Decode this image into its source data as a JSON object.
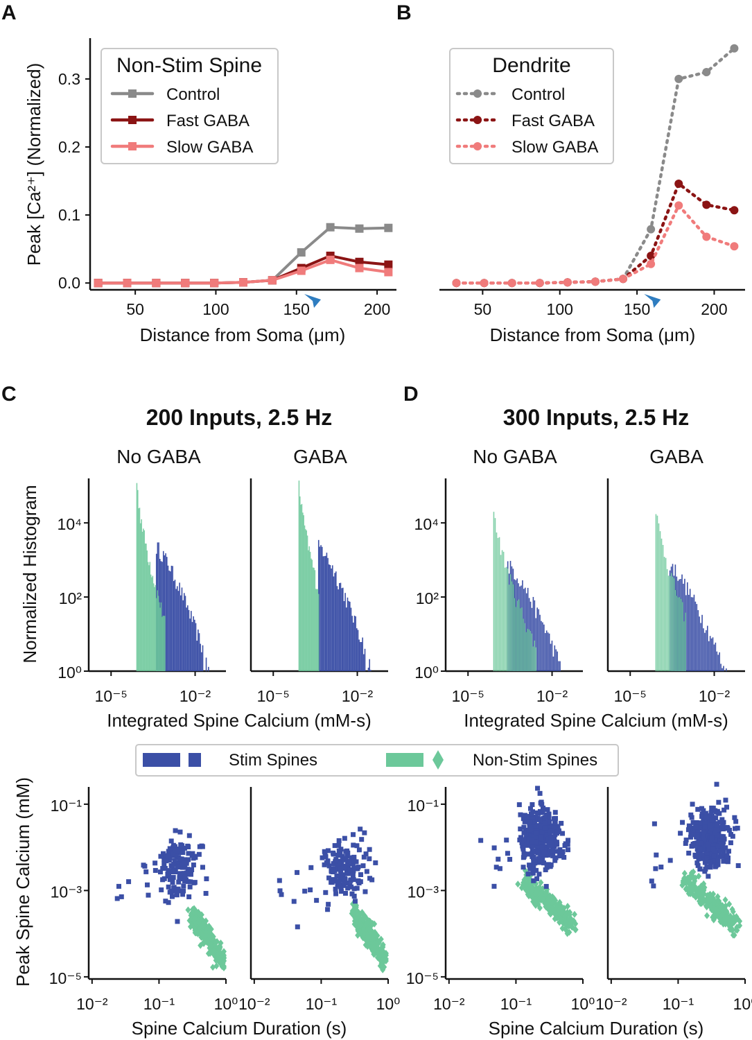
{
  "panels": {
    "A": "A",
    "B": "B",
    "C": "C",
    "D": "D"
  },
  "colors": {
    "control": "#8a8a8a",
    "fast_gaba": "#8b1414",
    "slow_gaba": "#f07b7b",
    "stim": "#3b4fa6",
    "nonstim": "#6cc89a",
    "arrow": "#2f7dc0"
  },
  "chart_data": [
    {
      "id": "A",
      "type": "line",
      "legend_title": "Non-Stim Spine",
      "xlabel": "Distance from Soma (μm)",
      "ylabel": "Peak [Ca²⁺] (Normalized)",
      "xlim": [
        22,
        212
      ],
      "ylim": [
        -0.01,
        0.36
      ],
      "xticks": [
        50,
        100,
        150,
        200
      ],
      "yticks": [
        0.0,
        0.1,
        0.2,
        0.3
      ],
      "xtick_labels": [
        "50",
        "100",
        "150",
        "200"
      ],
      "ytick_labels": [
        "0.0",
        "0.1",
        "0.2",
        "0.3"
      ],
      "arrow_x": 160,
      "x": [
        27,
        45,
        63,
        81,
        99,
        117,
        135,
        153,
        171,
        189,
        207
      ],
      "series": [
        {
          "name": "Control",
          "color_key": "control",
          "values": [
            0,
            0,
            0,
            0,
            0,
            0.001,
            0.004,
            0.045,
            0.082,
            0.08,
            0.081
          ]
        },
        {
          "name": "Fast GABA",
          "color_key": "fast_gaba",
          "values": [
            0,
            0,
            0,
            0,
            0,
            0.001,
            0.004,
            0.022,
            0.04,
            0.031,
            0.027
          ]
        },
        {
          "name": "Slow GABA",
          "color_key": "slow_gaba",
          "values": [
            0,
            0,
            0,
            0,
            0,
            0.001,
            0.004,
            0.018,
            0.034,
            0.022,
            0.016
          ]
        }
      ]
    },
    {
      "id": "B",
      "type": "line",
      "legend_title": "Dendrite",
      "xlabel": "Distance from Soma (μm)",
      "xlim": [
        22,
        220
      ],
      "ylim": [
        -0.01,
        0.36
      ],
      "xticks": [
        50,
        100,
        150,
        200
      ],
      "xtick_labels": [
        "50",
        "100",
        "150",
        "200"
      ],
      "arrow_x": 160,
      "x": [
        33,
        51,
        69,
        87,
        105,
        123,
        141,
        159,
        177,
        195,
        213
      ],
      "series": [
        {
          "name": "Control",
          "color_key": "control",
          "values": [
            0,
            0,
            0,
            0,
            0.001,
            0.002,
            0.006,
            0.079,
            0.3,
            0.31,
            0.345
          ]
        },
        {
          "name": "Fast GABA",
          "color_key": "fast_gaba",
          "values": [
            0,
            0,
            0,
            0,
            0.001,
            0.002,
            0.006,
            0.04,
            0.146,
            0.115,
            0.107
          ]
        },
        {
          "name": "Slow GABA",
          "color_key": "slow_gaba",
          "values": [
            0,
            0,
            0,
            0,
            0.001,
            0.002,
            0.006,
            0.028,
            0.114,
            0.068,
            0.054
          ]
        }
      ]
    },
    {
      "id": "C",
      "type": "histogram",
      "group_title": "200 Inputs, 2.5 Hz",
      "subplots": [
        "No GABA",
        "GABA"
      ],
      "xlabel": "Integrated Spine Calcium (mM-s)",
      "ylabel": "Normalized Histogram",
      "xscale": "log",
      "yscale": "log",
      "xticks": [
        "10⁻⁵",
        "10⁻²"
      ],
      "yticks": [
        "10⁰",
        "10²",
        "10⁴"
      ],
      "nonstim_range_log10": [
        -4.1,
        -3.1
      ],
      "stim_range_log10": [
        -3.4,
        -1.5
      ],
      "nonstim_peak": 150000,
      "stim_peak": 2500
    },
    {
      "id": "D",
      "type": "histogram",
      "group_title": "300 Inputs, 2.5 Hz",
      "subplots": [
        "No GABA",
        "GABA"
      ],
      "xlabel": "Integrated Spine Calcium (mM-s)",
      "xscale": "log",
      "yscale": "log",
      "xticks": [
        "10⁻⁵",
        "10⁻²"
      ],
      "yticks": [
        "10⁰",
        "10²",
        "10⁴"
      ],
      "nonstim_range_log10": [
        -4.1,
        -2.6
      ],
      "stim_range_log10": [
        -3.6,
        -1.4
      ],
      "nonstim_peak": 30000,
      "stim_peak": 800
    },
    {
      "id": "C_scatter",
      "type": "scatter",
      "xlabel": "Spine Calcium Duration (s)",
      "ylabel": "Peak Spine Calcium (mM)",
      "xscale": "log",
      "yscale": "log",
      "xticks": [
        "10⁻²",
        "10⁻¹",
        "10⁰"
      ],
      "yticks": [
        "10⁻⁵",
        "10⁻³",
        "10⁻¹"
      ],
      "stim_center_log10": [
        -0.7,
        -2.5
      ],
      "nonstim_start_log10": [
        -0.5,
        -3.7
      ],
      "nonstim_end_log10": [
        -0.05,
        -4.6
      ]
    },
    {
      "id": "D_scatter",
      "type": "scatter",
      "xlabel": "Spine Calcium Duration (s)",
      "xscale": "log",
      "yscale": "log",
      "xticks": [
        "10⁻²",
        "10⁻¹",
        "10⁰"
      ],
      "yticks": [
        "10⁻⁵",
        "10⁻³",
        "10⁻¹"
      ],
      "stim_center_log10": [
        -0.6,
        -1.8
      ],
      "nonstim_start_log10": [
        -0.9,
        -2.9
      ],
      "nonstim_end_log10": [
        -0.15,
        -3.8
      ]
    }
  ],
  "legend_bottom": {
    "stim": "Stim Spines",
    "nonstim": "Non-Stim Spines"
  }
}
